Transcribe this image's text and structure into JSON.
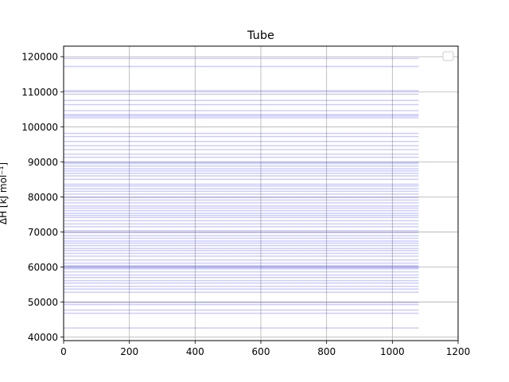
{
  "chart_data": {
    "type": "line",
    "title": "Tube",
    "xlabel": "",
    "ylabel": "ΔH [kJ mol⁻¹]",
    "xlim": [
      0,
      1200
    ],
    "ylim": [
      39000,
      123000
    ],
    "x_ticks": [
      0,
      200,
      400,
      600,
      800,
      1000,
      1200
    ],
    "y_ticks": [
      40000,
      50000,
      60000,
      70000,
      80000,
      90000,
      100000,
      110000,
      120000
    ],
    "y_tick_labels": [
      "40000",
      "50000",
      "60000",
      "70000",
      "80000",
      "90000",
      "100000",
      "110000",
      "120000"
    ],
    "grid": true,
    "legend": {
      "placement": "top-right",
      "entries": []
    },
    "series_color": "#0000ff",
    "series_alpha": 0.2,
    "line_x_range": [
      0,
      1080
    ],
    "series_levels": [
      42600,
      46800,
      47700,
      49300,
      49900,
      52800,
      53700,
      54500,
      55400,
      56100,
      57000,
      57700,
      58600,
      59500,
      59800,
      60100,
      60400,
      61100,
      62000,
      63100,
      63900,
      64700,
      65300,
      66100,
      66800,
      67400,
      68200,
      68900,
      69800,
      70400,
      71500,
      72300,
      73200,
      74100,
      74700,
      75300,
      76100,
      76800,
      77400,
      78300,
      79100,
      79800,
      80800,
      81600,
      82300,
      83100,
      83600,
      85000,
      86000,
      86700,
      87400,
      88000,
      88800,
      89500,
      89900,
      91300,
      92200,
      93500,
      94600,
      95800,
      97200,
      98100,
      102600,
      103100,
      103500,
      104600,
      106300,
      107500,
      109300,
      110300,
      117200,
      119500
    ]
  }
}
